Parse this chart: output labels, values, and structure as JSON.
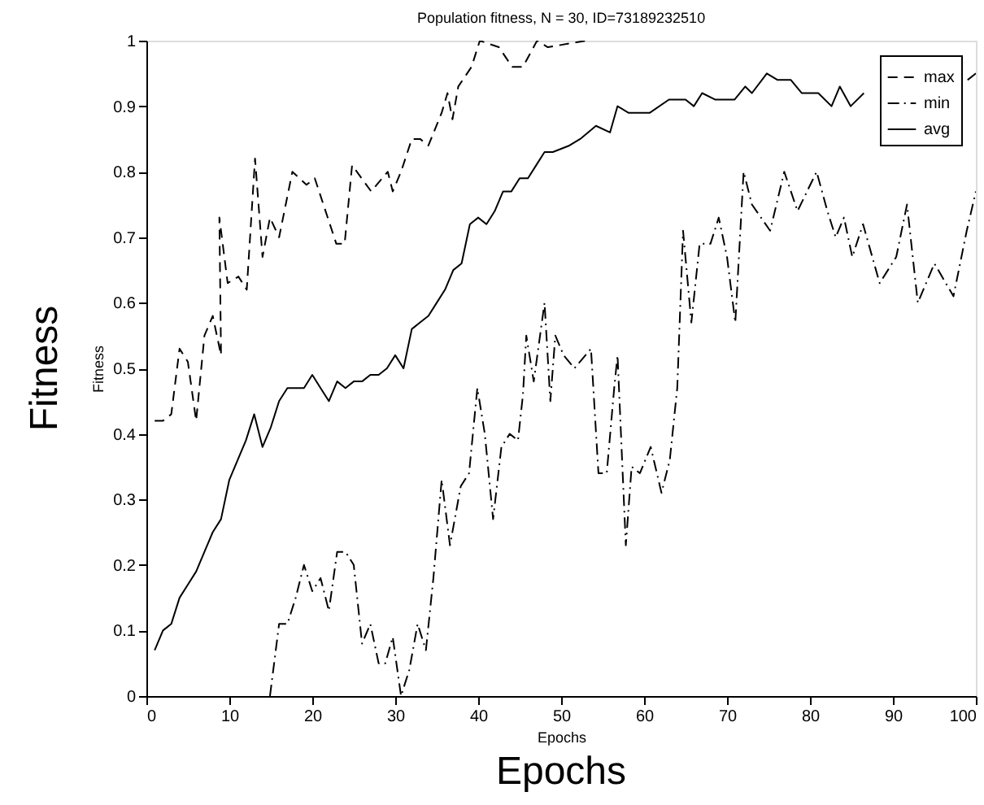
{
  "chart_data": {
    "type": "line",
    "title": "Population fitness, N = 30, ID=73189232510",
    "xlabel": "Epochs",
    "ylabel": "Fitness",
    "annotations": [
      "Fitness",
      "Epochs"
    ],
    "xlim": [
      0,
      100
    ],
    "xticks": [
      0,
      10,
      20,
      30,
      40,
      50,
      60,
      70,
      80,
      90,
      100
    ],
    "ylim": [
      0,
      1
    ],
    "yticks": [
      0,
      0.1,
      0.2,
      0.3,
      0.4,
      0.5,
      0.6,
      0.7,
      0.8,
      0.9,
      1
    ],
    "grid": false,
    "legend": "top right",
    "marker": "none",
    "series": [
      {
        "name": "max",
        "color": "#000000",
        "line_style": "dashed",
        "x": [
          1,
          2,
          3,
          4,
          5,
          6,
          7,
          8,
          9,
          8.8,
          9.8,
          11.1,
          12.1,
          13.1,
          14,
          14.9,
          16,
          17.6,
          19.3,
          20.3,
          22.9,
          23.9,
          24.8,
          27.1,
          29.1,
          29.7,
          30.7,
          32,
          33,
          34,
          35.6,
          36.3,
          36.9,
          37.6,
          39.2,
          40.2,
          42.5,
          44.1,
          45.4,
          47.1,
          48.4,
          53
        ],
        "values": [
          0.42,
          0.42,
          0.43,
          0.53,
          0.51,
          0.42,
          0.55,
          0.58,
          0.52,
          0.73,
          0.63,
          0.64,
          0.62,
          0.82,
          0.67,
          0.73,
          0.7,
          0.8,
          0.78,
          0.79,
          0.69,
          0.69,
          0.81,
          0.77,
          0.8,
          0.77,
          0.8,
          0.85,
          0.85,
          0.84,
          0.89,
          0.92,
          0.88,
          0.93,
          0.96,
          1.0,
          0.99,
          0.96,
          0.96,
          1.0,
          0.99,
          1.0
        ]
      },
      {
        "name": "min",
        "color": "#000000",
        "line_style": "dashdot",
        "x": [
          14.9,
          16,
          17,
          18,
          19,
          20,
          21,
          22,
          23,
          24,
          25,
          26,
          27,
          28,
          28.8,
          29.7,
          30.7,
          31.7,
          32.7,
          33.7,
          34.6,
          35.6,
          36.6,
          37.9,
          38.9,
          39.9,
          40.8,
          41.8,
          42.8,
          43.8,
          44.8,
          45.4,
          45.8,
          46.7,
          48,
          48.7,
          49.3,
          50.3,
          51.6,
          53.6,
          54.5,
          55.5,
          56.4,
          56.8,
          57.8,
          58.5,
          59.5,
          60.8,
          62.1,
          63.1,
          64,
          64.7,
          65.7,
          66.7,
          68,
          69,
          70,
          71,
          72,
          73,
          75.2,
          76.9,
          78.5,
          80.8,
          82.1,
          83.1,
          84.1,
          85.1,
          86.4,
          88.4,
          90.4,
          91.7,
          93,
          95,
          97.3,
          98.9,
          100
        ],
        "values": [
          0,
          0.11,
          0.11,
          0.15,
          0.2,
          0.16,
          0.18,
          0.13,
          0.22,
          0.22,
          0.2,
          0.08,
          0.11,
          0.05,
          0.05,
          0.09,
          0.0,
          0.04,
          0.11,
          0.07,
          0.18,
          0.33,
          0.23,
          0.32,
          0.34,
          0.47,
          0.4,
          0.27,
          0.38,
          0.4,
          0.39,
          0.46,
          0.55,
          0.48,
          0.6,
          0.45,
          0.55,
          0.52,
          0.5,
          0.53,
          0.34,
          0.34,
          0.47,
          0.52,
          0.23,
          0.35,
          0.34,
          0.38,
          0.31,
          0.36,
          0.47,
          0.71,
          0.57,
          0.69,
          0.69,
          0.73,
          0.67,
          0.57,
          0.8,
          0.75,
          0.71,
          0.8,
          0.74,
          0.8,
          0.74,
          0.7,
          0.73,
          0.67,
          0.72,
          0.63,
          0.67,
          0.75,
          0.6,
          0.66,
          0.61,
          0.71,
          0.77
        ]
      },
      {
        "name": "avg",
        "color": "#000000",
        "line_style": "solid",
        "x": [
          1,
          2,
          3,
          4,
          5,
          6,
          7,
          8,
          9,
          10,
          11,
          12,
          13,
          14,
          15,
          16,
          17,
          18,
          19,
          20,
          21,
          22,
          23,
          24,
          25,
          26,
          27,
          28,
          29,
          30,
          31,
          32,
          33,
          34,
          35,
          36,
          37,
          38,
          39,
          40,
          41,
          42,
          43,
          44,
          45,
          46,
          47,
          48,
          49,
          51,
          52.3,
          54.2,
          55.9,
          56.8,
          58.1,
          60.7,
          63,
          65,
          66,
          67,
          68.6,
          70.9,
          72.2,
          73,
          74.8,
          76.1,
          77.7,
          79,
          81,
          82.6,
          83.6,
          84.9,
          86.5,
          93,
          99,
          100
        ],
        "values": [
          0.07,
          0.1,
          0.11,
          0.15,
          0.17,
          0.19,
          0.22,
          0.25,
          0.27,
          0.33,
          0.36,
          0.39,
          0.43,
          0.38,
          0.41,
          0.45,
          0.47,
          0.47,
          0.47,
          0.49,
          0.47,
          0.45,
          0.48,
          0.47,
          0.48,
          0.48,
          0.49,
          0.49,
          0.5,
          0.52,
          0.5,
          0.56,
          0.57,
          0.58,
          0.6,
          0.62,
          0.65,
          0.66,
          0.72,
          0.73,
          0.72,
          0.74,
          0.77,
          0.77,
          0.79,
          0.79,
          0.81,
          0.83,
          0.83,
          0.84,
          0.85,
          0.87,
          0.86,
          0.9,
          0.89,
          0.89,
          0.91,
          0.91,
          0.9,
          0.92,
          0.91,
          0.91,
          0.93,
          0.92,
          0.95,
          0.94,
          0.94,
          0.92,
          0.92,
          0.9,
          0.93,
          0.9,
          0.92,
          null,
          0.94,
          0.95
        ]
      }
    ]
  }
}
